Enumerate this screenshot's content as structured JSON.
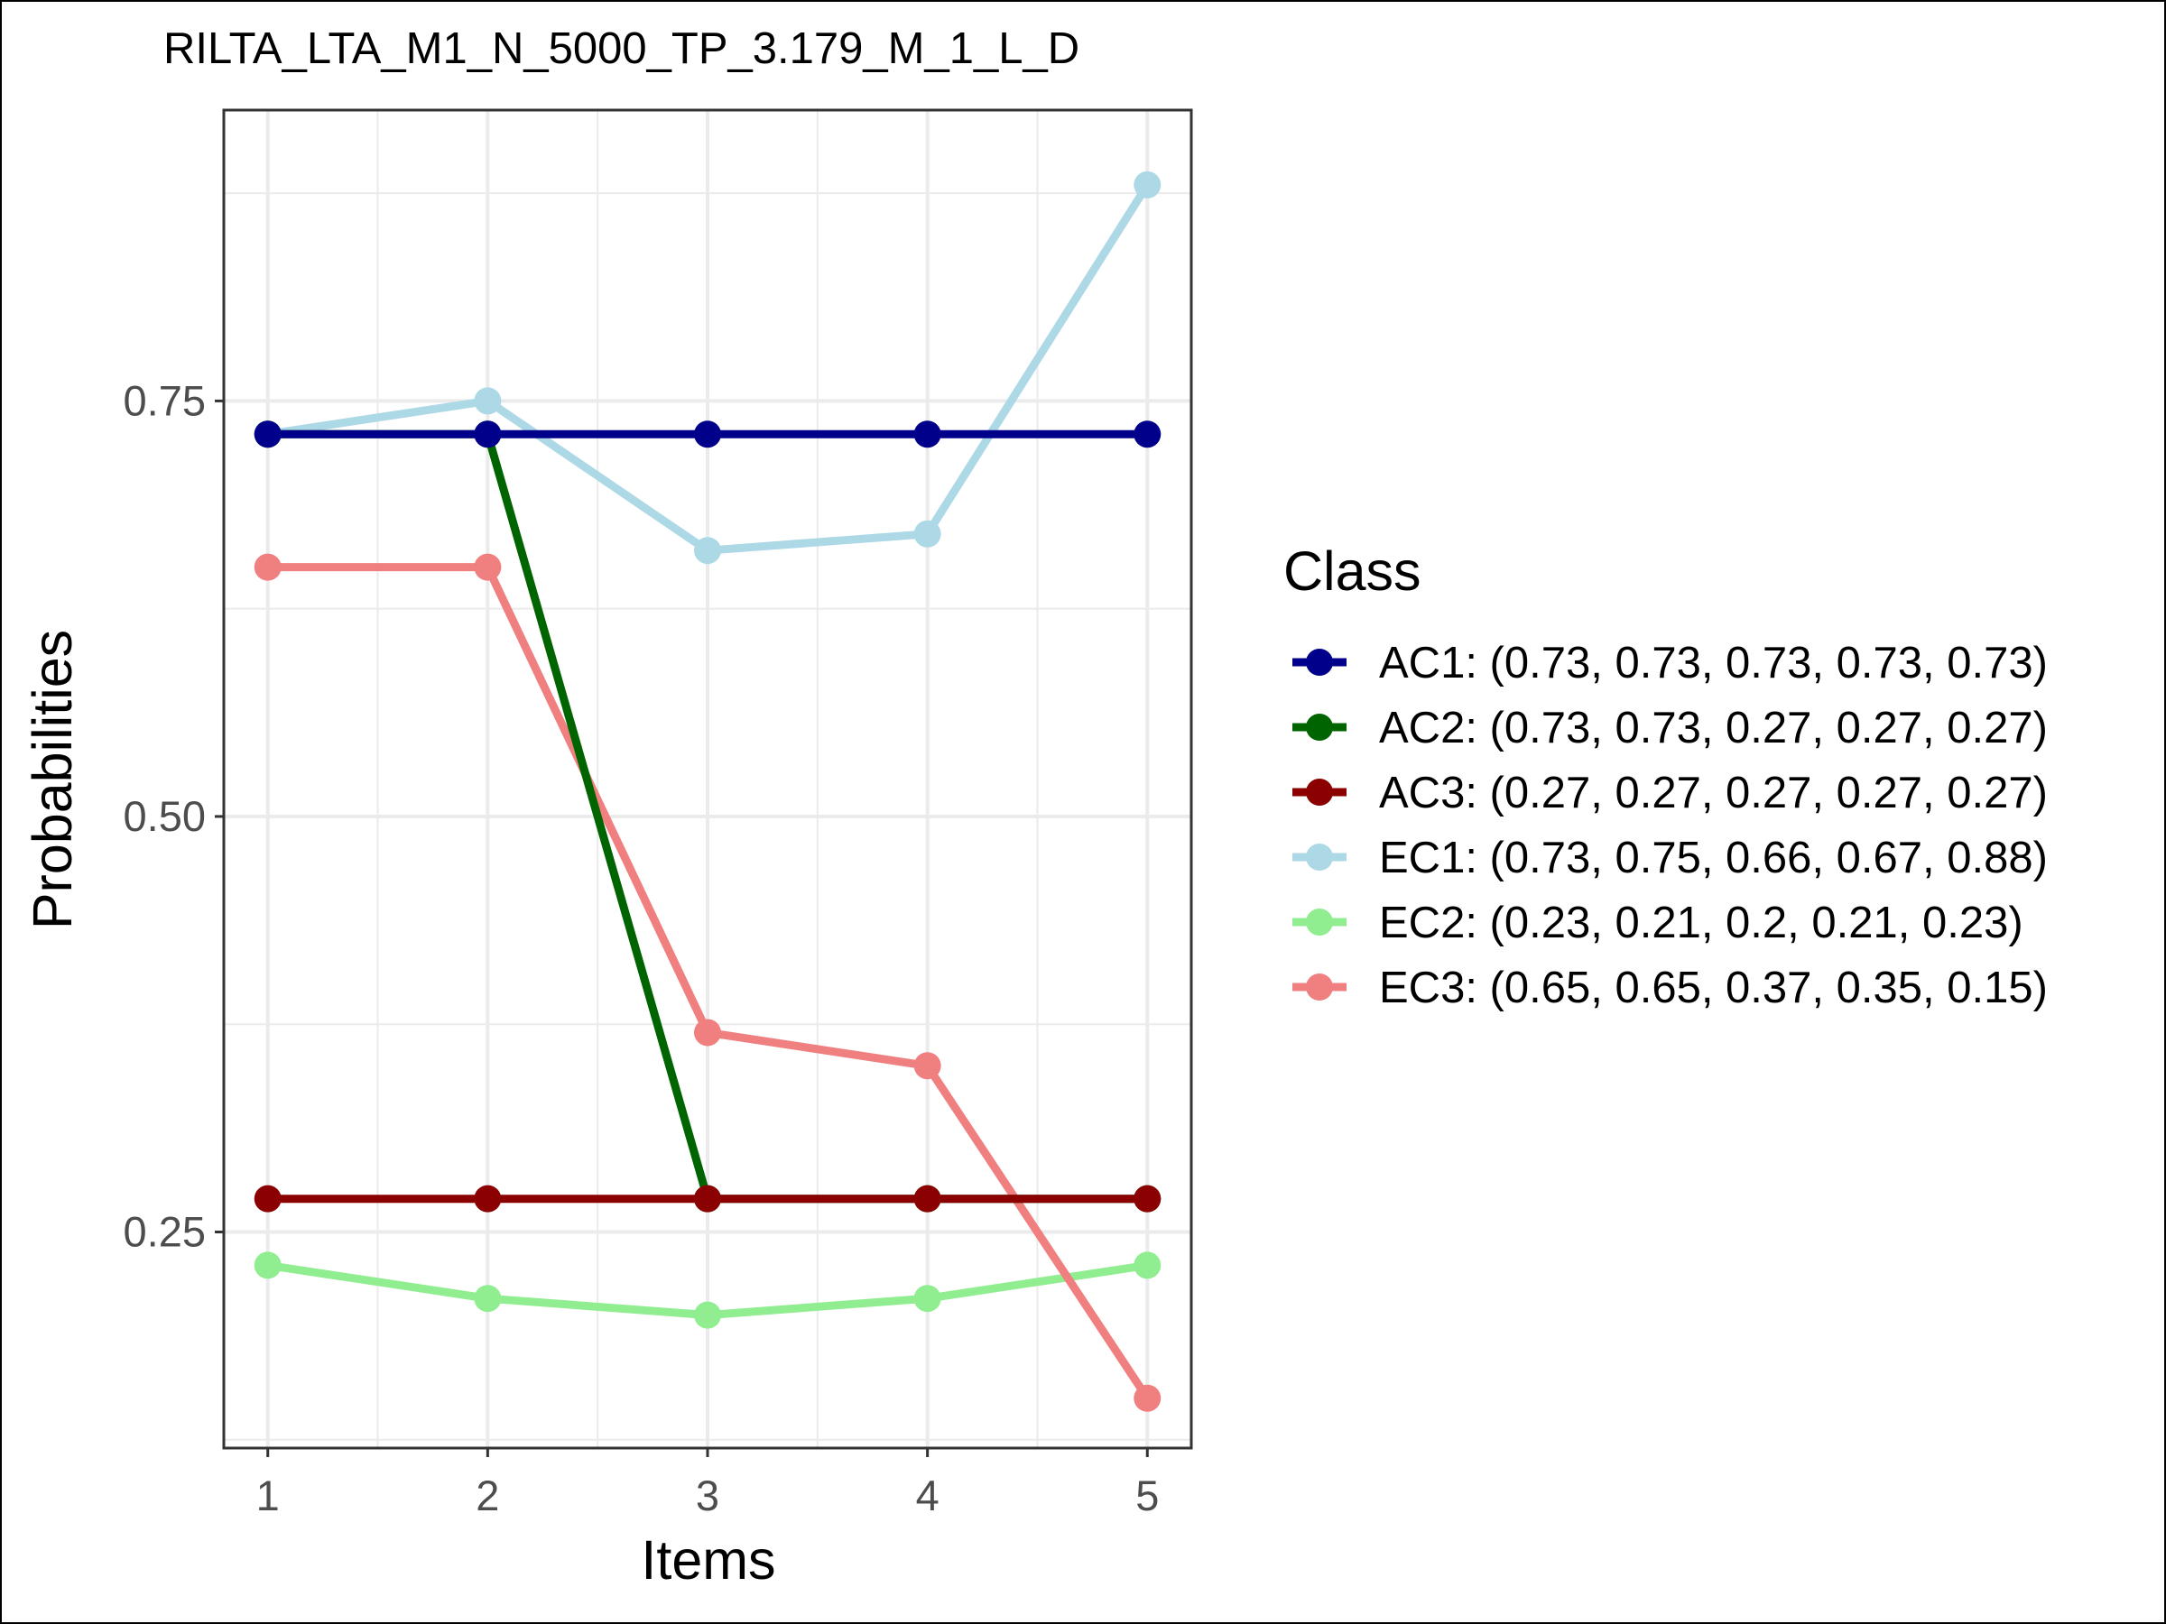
{
  "chart_data": {
    "type": "line",
    "title": "RILTA_LTA_M1_N_5000_TP_3.179_M_1_L_D",
    "xlabel": "Items",
    "ylabel": "Probabilities",
    "x": [
      1,
      2,
      3,
      4,
      5
    ],
    "x_ticks": [
      "1",
      "2",
      "3",
      "4",
      "5"
    ],
    "xlim": [
      0.8,
      5.2
    ],
    "ylim": [
      0.12,
      0.925
    ],
    "y_ticks": [
      0.25,
      0.5,
      0.75
    ],
    "y_tick_labels": [
      "0.25",
      "0.50",
      "0.75"
    ],
    "y_minor_ticks": [
      0.125,
      0.375,
      0.625,
      0.875
    ],
    "grid": true,
    "legend": {
      "title": "Class",
      "position": "right"
    },
    "series": [
      {
        "name": "AC1: (0.73, 0.73, 0.73, 0.73, 0.73)",
        "color": "#00008B",
        "values": [
          0.73,
          0.73,
          0.73,
          0.73,
          0.73
        ]
      },
      {
        "name": "AC2: (0.73, 0.73, 0.27, 0.27, 0.27)",
        "color": "#006400",
        "values": [
          0.73,
          0.73,
          0.27,
          0.27,
          0.27
        ]
      },
      {
        "name": "AC3: (0.27, 0.27, 0.27, 0.27, 0.27)",
        "color": "#8B0000",
        "values": [
          0.27,
          0.27,
          0.27,
          0.27,
          0.27
        ]
      },
      {
        "name": "EC1: (0.73, 0.75, 0.66, 0.67, 0.88)",
        "color": "#ADD8E6",
        "values": [
          0.73,
          0.75,
          0.66,
          0.67,
          0.88
        ]
      },
      {
        "name": "EC2: (0.23, 0.21, 0.2, 0.21, 0.23)",
        "color": "#90EE90",
        "values": [
          0.23,
          0.21,
          0.2,
          0.21,
          0.23
        ]
      },
      {
        "name": "EC3: (0.65, 0.65, 0.37, 0.35, 0.15)",
        "color": "#F08080",
        "values": [
          0.65,
          0.65,
          0.37,
          0.35,
          0.15
        ]
      }
    ],
    "draw_order": [
      3,
      4,
      5,
      1,
      2,
      0
    ]
  }
}
